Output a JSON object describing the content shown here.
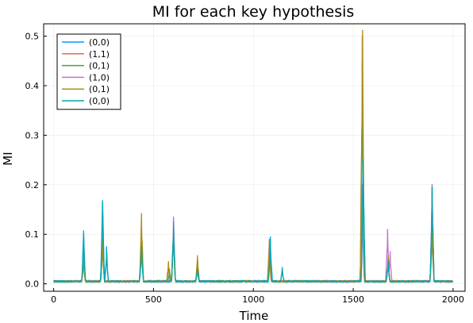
{
  "chart_data": {
    "type": "line",
    "title": "MI for each key hypothesis",
    "xlabel": "Time",
    "ylabel": "MI",
    "xlim": [
      -50,
      2060
    ],
    "ylim": [
      -0.015,
      0.525
    ],
    "xticks": [
      0,
      500,
      1000,
      1500,
      2000
    ],
    "yticks": [
      0.0,
      0.1,
      0.2,
      0.3,
      0.4,
      0.5
    ],
    "xtick_labels": [
      "0",
      "500",
      "1000",
      "1500",
      "2000"
    ],
    "ytick_labels": [
      "0.0",
      "0.1",
      "0.2",
      "0.3",
      "0.4",
      "0.5"
    ],
    "grid": true,
    "legend_position": "top-left",
    "baseline": 0.003,
    "x_range": [
      0,
      2000
    ],
    "series": [
      {
        "name": "(0,0)",
        "color": "#009AFA",
        "peaks": [
          [
            150,
            0.107
          ],
          [
            245,
            0.168
          ],
          [
            265,
            0.075
          ],
          [
            440,
            0.08
          ],
          [
            600,
            0.13
          ],
          [
            720,
            0.03
          ],
          [
            1085,
            0.095
          ],
          [
            1145,
            0.033
          ],
          [
            1550,
            0.255
          ],
          [
            1675,
            0.05
          ],
          [
            1895,
            0.2
          ]
        ]
      },
      {
        "name": "(1,1)",
        "color": "#E36F47",
        "peaks": [
          [
            150,
            0.06
          ],
          [
            245,
            0.09
          ],
          [
            440,
            0.12
          ],
          [
            575,
            0.04
          ],
          [
            600,
            0.12
          ],
          [
            720,
            0.05
          ],
          [
            1080,
            0.09
          ],
          [
            1545,
            0.5
          ],
          [
            1675,
            0.06
          ],
          [
            1895,
            0.19
          ]
        ]
      },
      {
        "name": "(0,1)",
        "color": "#3EA44E",
        "peaks": [
          [
            150,
            0.05
          ],
          [
            245,
            0.08
          ],
          [
            440,
            0.11
          ],
          [
            580,
            0.03
          ],
          [
            600,
            0.11
          ],
          [
            720,
            0.045
          ],
          [
            1080,
            0.08
          ],
          [
            1545,
            0.45
          ],
          [
            1675,
            0.05
          ],
          [
            1895,
            0.18
          ]
        ]
      },
      {
        "name": "(1,0)",
        "color": "#C371D1",
        "peaks": [
          [
            150,
            0.05
          ],
          [
            245,
            0.085
          ],
          [
            440,
            0.1
          ],
          [
            600,
            0.135
          ],
          [
            720,
            0.04
          ],
          [
            1080,
            0.085
          ],
          [
            1545,
            0.2
          ],
          [
            1672,
            0.11
          ],
          [
            1685,
            0.065
          ],
          [
            1895,
            0.2
          ]
        ]
      },
      {
        "name": "(0,1)",
        "color": "#AC8D18",
        "peaks": [
          [
            150,
            0.045
          ],
          [
            245,
            0.085
          ],
          [
            440,
            0.142
          ],
          [
            575,
            0.045
          ],
          [
            600,
            0.1
          ],
          [
            720,
            0.057
          ],
          [
            1080,
            0.08
          ],
          [
            1547,
            0.512
          ],
          [
            1675,
            0.055
          ],
          [
            1895,
            0.105
          ]
        ]
      },
      {
        "name": "(0,0)",
        "color": "#00A9AD",
        "peaks": [
          [
            150,
            0.1
          ],
          [
            245,
            0.165
          ],
          [
            265,
            0.07
          ],
          [
            440,
            0.075
          ],
          [
            600,
            0.125
          ],
          [
            720,
            0.03
          ],
          [
            1085,
            0.09
          ],
          [
            1145,
            0.03
          ],
          [
            1550,
            0.25
          ],
          [
            1675,
            0.045
          ],
          [
            1895,
            0.195
          ]
        ]
      }
    ]
  }
}
